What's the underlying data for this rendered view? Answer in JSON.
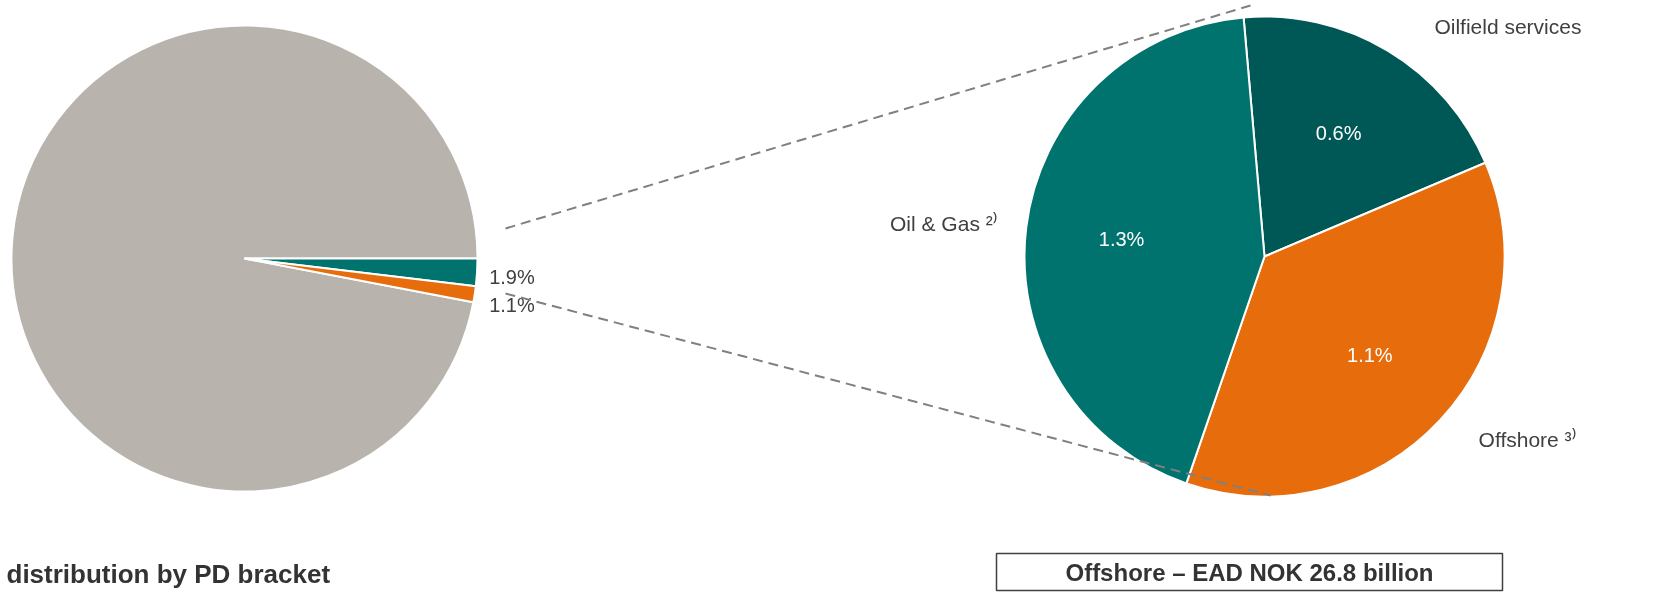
{
  "chart_data": [
    {
      "type": "pie",
      "title": "distribution by PD bracket",
      "categories": [
        null,
        null,
        null
      ],
      "values": [
        97.0,
        1.9,
        1.1
      ],
      "colors": [
        "#b8b3ad",
        "#00736f",
        "#e66c0c"
      ],
      "value_labels": [
        null,
        "1.9%",
        "1.1%"
      ]
    },
    {
      "type": "pie",
      "title": "Offshore – EAD NOK 26.8 billion",
      "categories": [
        "Oilfield services",
        "Offshore ³⁾",
        "Oil & Gas ²⁾"
      ],
      "values": [
        0.6,
        1.1,
        1.3
      ],
      "colors": [
        "#005856",
        "#e66c0c",
        "#00736f"
      ],
      "value_labels": [
        "0.6%",
        "1.1%",
        "1.3%"
      ]
    }
  ]
}
